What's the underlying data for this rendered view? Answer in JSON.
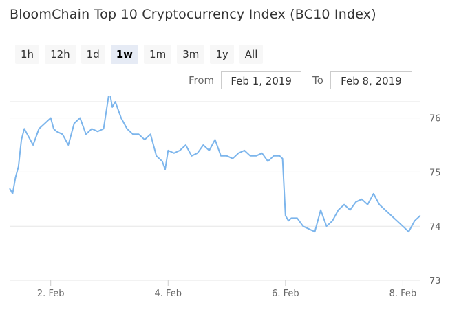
{
  "title": "BloomChain Top 10 Cryptocurrency Index (BC10 Index)",
  "range_selector": {
    "buttons": [
      "1h",
      "12h",
      "1d",
      "1w",
      "1m",
      "3m",
      "1y",
      "All"
    ],
    "selected": "1w"
  },
  "date_range": {
    "from_label": "From",
    "from_value": "Feb 1, 2019",
    "to_label": "To",
    "to_value": "Feb 8, 2019"
  },
  "colors": {
    "series": "#7cb5ec",
    "grid": "#e6e6e6",
    "axis_text": "#666666",
    "selected_button_bg": "#e6ebf5"
  },
  "chart_data": {
    "type": "line",
    "title": "BloomChain Top 10 Cryptocurrency Index (BC10 Index)",
    "xlabel": "",
    "ylabel": "",
    "x_domain": [
      1.3,
      8.3
    ],
    "ylim": [
      73,
      76.3
    ],
    "x_ticks": [
      2,
      4,
      6,
      8
    ],
    "x_tick_labels": [
      "2. Feb",
      "4. Feb",
      "6. Feb",
      "8. Feb"
    ],
    "y_ticks": [
      73,
      74,
      75,
      76
    ],
    "y_tick_labels": [
      "73",
      "74",
      "75",
      "76"
    ],
    "y_axis_position": "right",
    "grid": true,
    "legend": "none",
    "series": [
      {
        "x": [
          1.3,
          1.35,
          1.4,
          1.45,
          1.5,
          1.55,
          1.6,
          1.7,
          1.8,
          1.9,
          2.0,
          2.05,
          2.1,
          2.2,
          2.3,
          2.4,
          2.5,
          2.6,
          2.7,
          2.8,
          2.9,
          3.0,
          3.05,
          3.1,
          3.2,
          3.3,
          3.4,
          3.5,
          3.6,
          3.7,
          3.8,
          3.9,
          3.95,
          4.0,
          4.1,
          4.2,
          4.3,
          4.4,
          4.5,
          4.6,
          4.7,
          4.8,
          4.9,
          5.0,
          5.1,
          5.2,
          5.3,
          5.4,
          5.5,
          5.6,
          5.7,
          5.8,
          5.9,
          5.95,
          6.0,
          6.05,
          6.1,
          6.2,
          6.3,
          6.4,
          6.5,
          6.6,
          6.7,
          6.8,
          6.9,
          7.0,
          7.1,
          7.2,
          7.3,
          7.4,
          7.5,
          7.6,
          7.7,
          7.8,
          7.9,
          8.0,
          8.1,
          8.2,
          8.3
        ],
        "y": [
          74.7,
          74.6,
          74.9,
          75.1,
          75.6,
          75.8,
          75.7,
          75.5,
          75.8,
          75.9,
          76.0,
          75.8,
          75.75,
          75.7,
          75.5,
          75.9,
          76.0,
          75.7,
          75.8,
          75.75,
          75.8,
          76.5,
          76.2,
          76.3,
          76.0,
          75.8,
          75.7,
          75.7,
          75.6,
          75.7,
          75.3,
          75.2,
          75.05,
          75.4,
          75.35,
          75.4,
          75.5,
          75.3,
          75.35,
          75.5,
          75.4,
          75.6,
          75.3,
          75.3,
          75.25,
          75.35,
          75.4,
          75.3,
          75.3,
          75.35,
          75.2,
          75.3,
          75.3,
          75.25,
          74.2,
          74.1,
          74.15,
          74.15,
          74.0,
          73.95,
          73.9,
          74.3,
          74.0,
          74.1,
          74.3,
          74.4,
          74.3,
          74.45,
          74.5,
          74.4,
          74.6,
          74.4,
          74.3,
          74.2,
          74.1,
          74.0,
          73.9,
          74.1,
          74.2
        ]
      }
    ]
  }
}
